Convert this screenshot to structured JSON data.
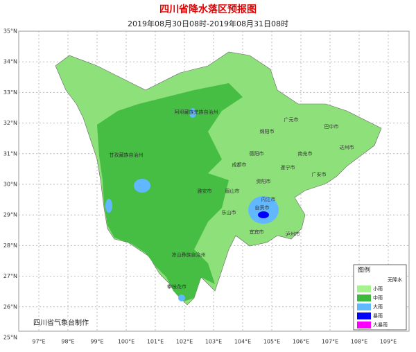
{
  "title": "四川省降水落区预报图",
  "subtitle": "2019年08月30日08时-2019年08月31日08时",
  "lat_labels": [
    "35°N",
    "34°N",
    "33°N",
    "32°N",
    "31°N",
    "30°N",
    "29°N",
    "28°N",
    "27°N",
    "26°N",
    "25°N"
  ],
  "lon_labels": [
    "97°E",
    "98°E",
    "99°E",
    "100°E",
    "101°E",
    "102°E",
    "103°E",
    "104°E",
    "105°E",
    "106°E",
    "107°E",
    "108°E",
    "109°E"
  ],
  "cities": [
    "阿坝藏族羌族自治州",
    "广元市",
    "巴中市",
    "绵阳市",
    "达州市",
    "甘孜藏族自治州",
    "德阳市",
    "南充市",
    "成都市",
    "遂宁市",
    "广安市",
    "资阳市",
    "雅安市",
    "眉山市",
    "内江市",
    "自贡市",
    "乐山市",
    "宜宾市",
    "泸州市",
    "凉山彝族自治州",
    "攀枝花市"
  ],
  "legend": {
    "title": "图例",
    "items": [
      {
        "label": "无降水",
        "color": "#ffffff"
      },
      {
        "label": "小雨",
        "color": "#a6f28f"
      },
      {
        "label": "中雨",
        "color": "#3dba3d"
      },
      {
        "label": "大雨",
        "color": "#61b8ff"
      },
      {
        "label": "暴雨",
        "color": "#0000fe"
      },
      {
        "label": "大暴雨",
        "color": "#fa00fa"
      }
    ]
  },
  "credit": "四川省气象台制作"
}
